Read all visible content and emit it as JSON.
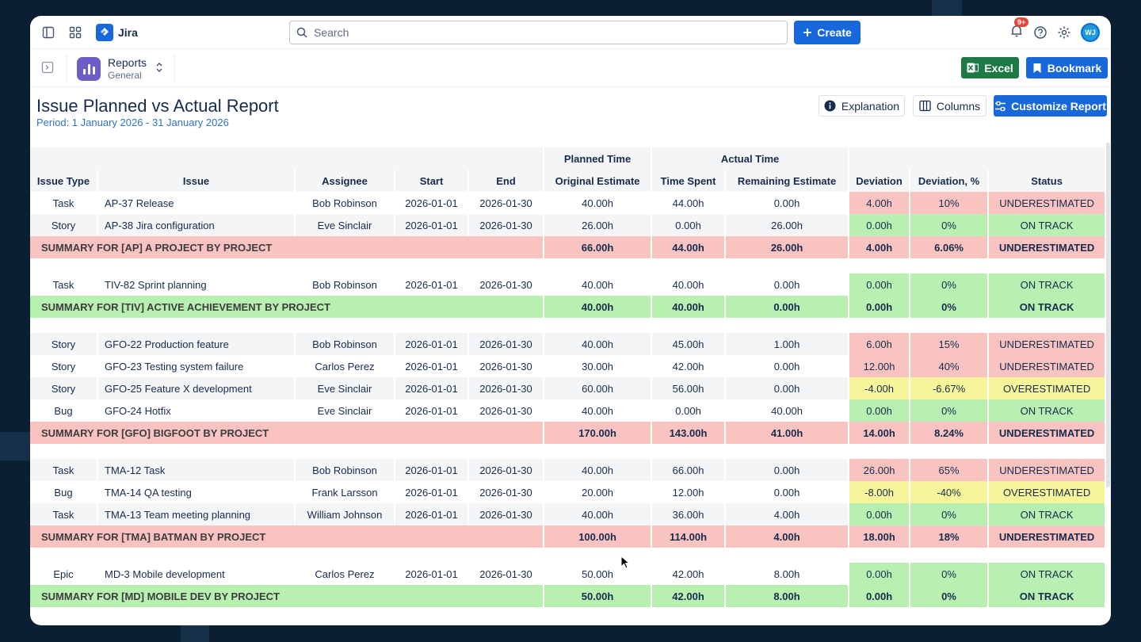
{
  "topnav": {
    "app_name": "Jira",
    "search_placeholder": "Search",
    "create_label": "Create",
    "notifications_badge": "9+",
    "avatar_initials": "WJ"
  },
  "subheader": {
    "section_title": "Reports",
    "section_sub": "General",
    "excel_label": "Excel",
    "bookmark_label": "Bookmark"
  },
  "report": {
    "title": "Issue Planned vs Actual Report",
    "period": "Period: 1 January 2026 - 31 January 2026",
    "explanation_label": "Explanation",
    "columns_label": "Columns",
    "customize_label": "Customize Report"
  },
  "table": {
    "group_headers": {
      "planned": "Planned Time",
      "actual": "Actual Time"
    },
    "columns": [
      "Issue Type",
      "Issue",
      "Assignee",
      "Start",
      "End",
      "Original Estimate",
      "Time Spent",
      "Remaining Estimate",
      "Deviation",
      "Deviation, %",
      "Status"
    ],
    "rows": [
      {
        "kind": "issue",
        "type": "Task",
        "issue": "AP-37 Release",
        "assignee": "Bob Robinson",
        "start": "2026-01-01",
        "end": "2026-01-30",
        "orig": "40.00h",
        "spent": "44.00h",
        "remaining": "0.00h",
        "dev": "4.00h",
        "devpct": "10%",
        "status": "UNDERESTIMATED",
        "color": "red"
      },
      {
        "kind": "issue",
        "type": "Story",
        "issue": "AP-38 Jira configuration",
        "assignee": "Eve Sinclair",
        "start": "2026-01-01",
        "end": "2026-01-30",
        "orig": "26.00h",
        "spent": "0.00h",
        "remaining": "26.00h",
        "dev": "0.00h",
        "devpct": "0%",
        "status": "ON TRACK",
        "color": "green"
      },
      {
        "kind": "summary",
        "label": "SUMMARY FOR [AP] A PROJECT BY PROJECT",
        "orig": "66.00h",
        "spent": "44.00h",
        "remaining": "26.00h",
        "dev": "4.00h",
        "devpct": "6.06%",
        "status": "UNDERESTIMATED",
        "color": "red"
      },
      {
        "kind": "gap"
      },
      {
        "kind": "issue",
        "type": "Task",
        "issue": "TIV-82 Sprint planning",
        "assignee": "Bob Robinson",
        "start": "2026-01-01",
        "end": "2026-01-30",
        "orig": "40.00h",
        "spent": "40.00h",
        "remaining": "0.00h",
        "dev": "0.00h",
        "devpct": "0%",
        "status": "ON TRACK",
        "color": "green"
      },
      {
        "kind": "summary",
        "label": "SUMMARY FOR [TIV] ACTIVE ACHIEVEMENT BY PROJECT",
        "orig": "40.00h",
        "spent": "40.00h",
        "remaining": "0.00h",
        "dev": "0.00h",
        "devpct": "0%",
        "status": "ON TRACK",
        "color": "green"
      },
      {
        "kind": "gap"
      },
      {
        "kind": "issue",
        "type": "Story",
        "issue": "GFO-22 Production feature",
        "assignee": "Bob Robinson",
        "start": "2026-01-01",
        "end": "2026-01-30",
        "orig": "40.00h",
        "spent": "45.00h",
        "remaining": "1.00h",
        "dev": "6.00h",
        "devpct": "15%",
        "status": "UNDERESTIMATED",
        "color": "red"
      },
      {
        "kind": "issue",
        "type": "Story",
        "issue": "GFO-23 Testing system failure",
        "assignee": "Carlos Perez",
        "start": "2026-01-01",
        "end": "2026-01-30",
        "orig": "30.00h",
        "spent": "42.00h",
        "remaining": "0.00h",
        "dev": "12.00h",
        "devpct": "40%",
        "status": "UNDERESTIMATED",
        "color": "red"
      },
      {
        "kind": "issue",
        "type": "Story",
        "issue": "GFO-25 Feature X development",
        "assignee": "Eve Sinclair",
        "start": "2026-01-01",
        "end": "2026-01-30",
        "orig": "60.00h",
        "spent": "56.00h",
        "remaining": "0.00h",
        "dev": "-4.00h",
        "devpct": "-6.67%",
        "status": "OVERESTIMATED",
        "color": "yellow"
      },
      {
        "kind": "issue",
        "type": "Bug",
        "issue": "GFO-24 Hotfix",
        "assignee": "Eve Sinclair",
        "start": "2026-01-01",
        "end": "2026-01-30",
        "orig": "40.00h",
        "spent": "0.00h",
        "remaining": "40.00h",
        "dev": "0.00h",
        "devpct": "0%",
        "status": "ON TRACK",
        "color": "green"
      },
      {
        "kind": "summary",
        "label": "SUMMARY FOR [GFO] BIGFOOT BY PROJECT",
        "orig": "170.00h",
        "spent": "143.00h",
        "remaining": "41.00h",
        "dev": "14.00h",
        "devpct": "8.24%",
        "status": "UNDERESTIMATED",
        "color": "red"
      },
      {
        "kind": "gap"
      },
      {
        "kind": "issue",
        "type": "Task",
        "issue": "TMA-12 Task",
        "assignee": "Bob Robinson",
        "start": "2026-01-01",
        "end": "2026-01-30",
        "orig": "40.00h",
        "spent": "66.00h",
        "remaining": "0.00h",
        "dev": "26.00h",
        "devpct": "65%",
        "status": "UNDERESTIMATED",
        "color": "red"
      },
      {
        "kind": "issue",
        "type": "Bug",
        "issue": "TMA-14 QA testing",
        "assignee": "Frank Larsson",
        "start": "2026-01-01",
        "end": "2026-01-30",
        "orig": "20.00h",
        "spent": "12.00h",
        "remaining": "0.00h",
        "dev": "-8.00h",
        "devpct": "-40%",
        "status": "OVERESTIMATED",
        "color": "yellow"
      },
      {
        "kind": "issue",
        "type": "Task",
        "issue": "TMA-13 Team meeting planning",
        "assignee": "William Johnson",
        "start": "2026-01-01",
        "end": "2026-01-30",
        "orig": "40.00h",
        "spent": "36.00h",
        "remaining": "4.00h",
        "dev": "0.00h",
        "devpct": "0%",
        "status": "ON TRACK",
        "color": "green"
      },
      {
        "kind": "summary",
        "label": "SUMMARY FOR [TMA] BATMAN BY PROJECT",
        "orig": "100.00h",
        "spent": "114.00h",
        "remaining": "4.00h",
        "dev": "18.00h",
        "devpct": "18%",
        "status": "UNDERESTIMATED",
        "color": "red"
      },
      {
        "kind": "gap"
      },
      {
        "kind": "issue",
        "type": "Epic",
        "issue": "MD-3 Mobile development",
        "assignee": "Carlos Perez",
        "start": "2026-01-01",
        "end": "2026-01-30",
        "orig": "50.00h",
        "spent": "42.00h",
        "remaining": "8.00h",
        "dev": "0.00h",
        "devpct": "0%",
        "status": "ON TRACK",
        "color": "green"
      },
      {
        "kind": "summary",
        "label": "SUMMARY FOR [MD] MOBILE DEV BY PROJECT",
        "orig": "50.00h",
        "spent": "42.00h",
        "remaining": "8.00h",
        "dev": "0.00h",
        "devpct": "0%",
        "status": "ON TRACK",
        "color": "green"
      }
    ]
  },
  "colors": {
    "accent": "#1868db",
    "excel": "#1d7a45",
    "red": "#f8c3c1",
    "green": "#b7f0b1",
    "yellow": "#f6f59a"
  }
}
